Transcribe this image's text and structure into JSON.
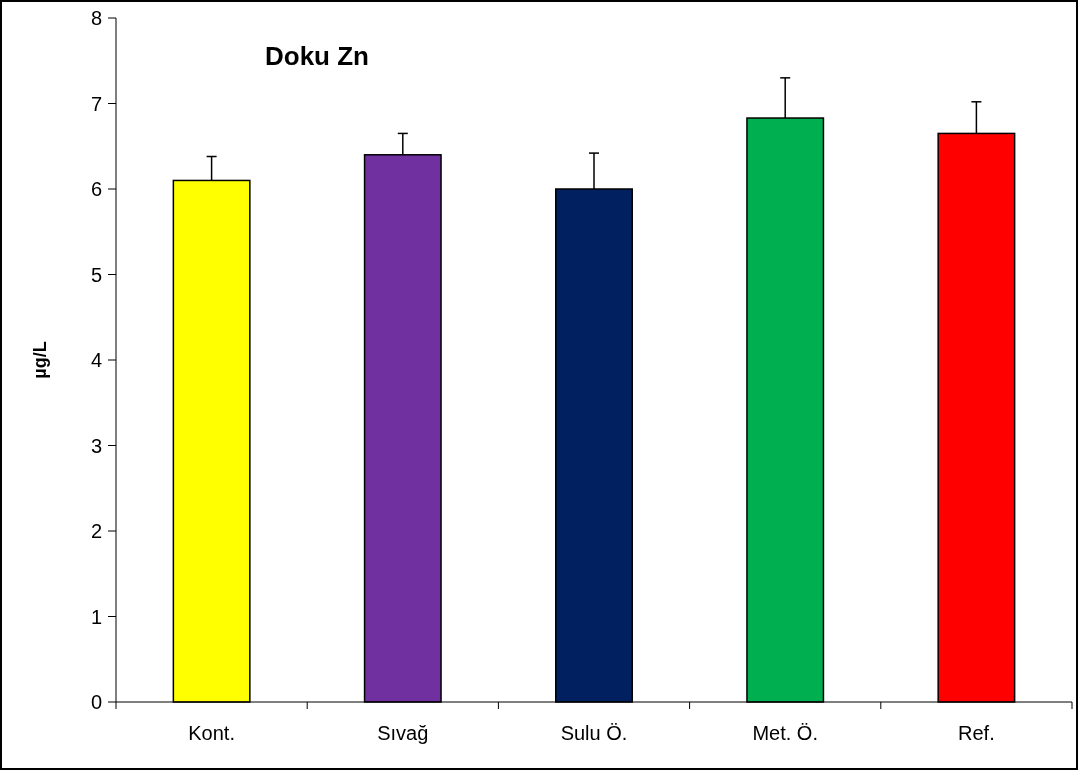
{
  "chart_data": {
    "type": "bar",
    "title": "Doku Zn",
    "ylabel": "µg/L",
    "categories": [
      "Kont.",
      "Sıvağ",
      "Sulu Ö.",
      "Met. Ö.",
      "Ref."
    ],
    "values": [
      6.1,
      6.4,
      6.0,
      6.83,
      6.65
    ],
    "colors": [
      "#ffff00",
      "#7030a0",
      "#002060",
      "#00b050",
      "#ff0000"
    ],
    "errors": [
      [
        6.1,
        6.38
      ],
      [
        6.4,
        6.65
      ],
      [
        6.0,
        6.42
      ],
      [
        6.83,
        7.3
      ],
      [
        6.65,
        7.02
      ]
    ],
    "ylim": [
      0,
      8
    ],
    "yticks": [
      0,
      1,
      2,
      3,
      4,
      5,
      6,
      7,
      8
    ]
  }
}
